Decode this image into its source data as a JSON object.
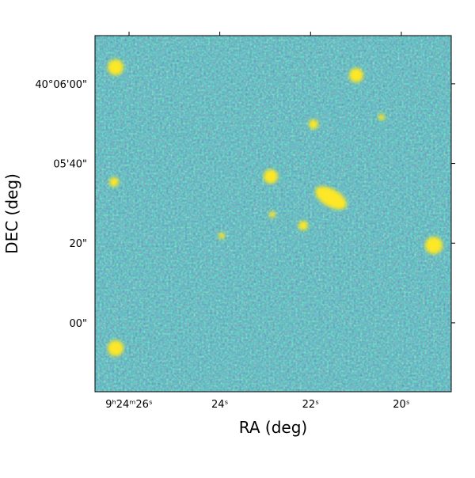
{
  "chart_data": {
    "type": "image",
    "x_label": "RA (deg)",
    "y_label": "DEC (deg)",
    "xlim": [
      26.75,
      18.9
    ],
    "ylim": [
      -17.3,
      72.1
    ],
    "xticks": [
      {
        "value": 26,
        "label": "9ʰ24ᵐ26ˢ"
      },
      {
        "value": 24,
        "label": "24ˢ"
      },
      {
        "value": 22,
        "label": "22ˢ"
      },
      {
        "value": 20,
        "label": "20ˢ"
      }
    ],
    "yticks": [
      {
        "value": 60,
        "label": "40°06'00\""
      },
      {
        "value": 40,
        "label": "05'40\""
      },
      {
        "value": 20,
        "label": "20\""
      },
      {
        "value": 0,
        "label": "00\""
      }
    ]
  }
}
